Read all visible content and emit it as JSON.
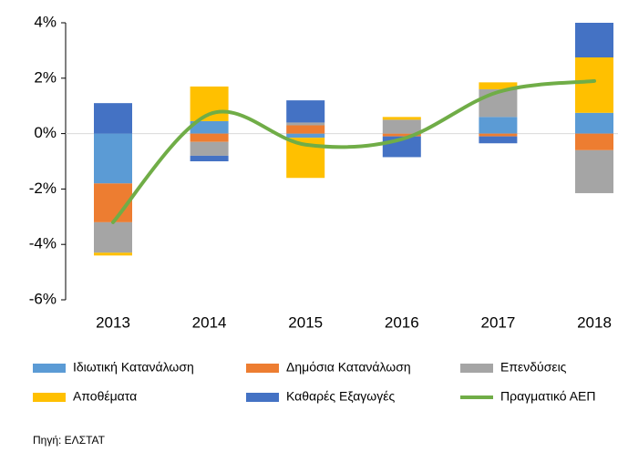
{
  "chart_data": {
    "type": "bar",
    "categories": [
      "2013",
      "2014",
      "2015",
      "2016",
      "2017",
      "2018"
    ],
    "series": [
      {
        "name": "Ιδιωτική Κατανάλωση",
        "color": "#5b9bd5",
        "values": [
          -1.8,
          0.45,
          -0.15,
          0,
          0.6,
          0.75
        ]
      },
      {
        "name": "Δημόσια Κατανάλωση",
        "color": "#ed7d31",
        "values": [
          -1.4,
          -0.3,
          0.3,
          -0.1,
          -0.1,
          -0.6
        ]
      },
      {
        "name": "Επενδύσεις",
        "color": "#a5a5a5",
        "values": [
          -1.1,
          -0.5,
          0.1,
          0.5,
          1.0,
          -1.55
        ]
      },
      {
        "name": "Αποθέματα",
        "color": "#ffc000",
        "values": [
          -0.1,
          1.25,
          -1.45,
          0.1,
          0.25,
          2.0
        ]
      },
      {
        "name": "Καθαρές Εξαγωγές",
        "color": "#4472c4",
        "values": [
          1.1,
          -0.2,
          0.8,
          -0.75,
          -0.25,
          1.25
        ]
      },
      {
        "name": "Πραγματικό ΑΕΠ",
        "color": "#70ad47",
        "type": "line",
        "values": [
          -3.2,
          0.7,
          -0.4,
          -0.2,
          1.5,
          1.9
        ]
      }
    ],
    "ylim": [
      -6,
      4
    ],
    "yticks": [
      {
        "value": -6,
        "label": "-6%"
      },
      {
        "value": -4,
        "label": "-4%"
      },
      {
        "value": -2,
        "label": "-2%"
      },
      {
        "value": 0,
        "label": "0%"
      },
      {
        "value": 2,
        "label": "2%"
      },
      {
        "value": 4,
        "label": "4%"
      }
    ],
    "source": "Πηγή: ΕΛΣΤΑΤ"
  }
}
